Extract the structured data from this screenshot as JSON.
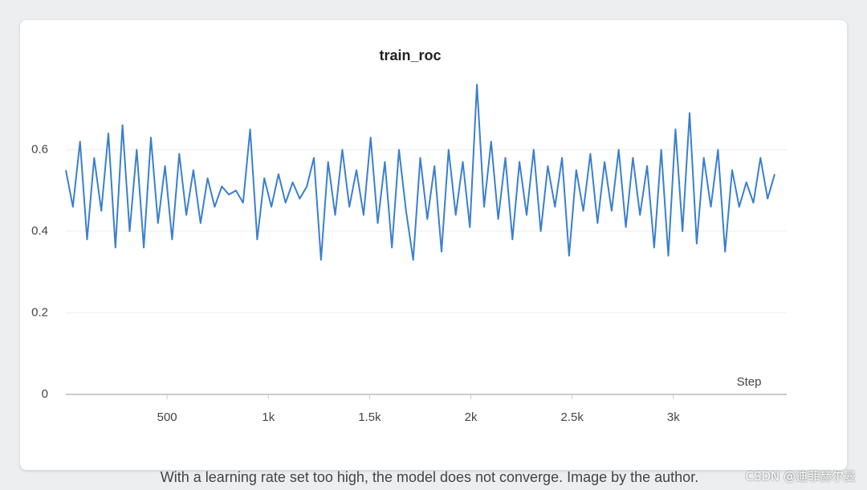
{
  "chart_data": {
    "type": "line",
    "title": "train_roc",
    "x_label": "Step",
    "x": [
      0,
      35,
      70,
      105,
      140,
      175,
      210,
      245,
      280,
      315,
      350,
      385,
      420,
      455,
      490,
      525,
      560,
      595,
      630,
      665,
      700,
      735,
      770,
      805,
      840,
      875,
      910,
      945,
      980,
      1015,
      1050,
      1085,
      1120,
      1155,
      1190,
      1225,
      1260,
      1295,
      1330,
      1365,
      1400,
      1435,
      1470,
      1505,
      1540,
      1575,
      1610,
      1645,
      1680,
      1715,
      1750,
      1785,
      1820,
      1855,
      1890,
      1925,
      1960,
      1995,
      2030,
      2065,
      2100,
      2135,
      2170,
      2205,
      2240,
      2275,
      2310,
      2345,
      2380,
      2415,
      2450,
      2485,
      2520,
      2555,
      2590,
      2625,
      2660,
      2695,
      2730,
      2765,
      2800,
      2835,
      2870,
      2905,
      2940,
      2975,
      3010,
      3045,
      3080,
      3115,
      3150,
      3185,
      3220,
      3255,
      3290,
      3325,
      3360,
      3395,
      3430,
      3465,
      3500
    ],
    "series": [
      {
        "name": "train_roc",
        "color": "#3a7fd0",
        "values": [
          0.55,
          0.46,
          0.62,
          0.38,
          0.58,
          0.45,
          0.64,
          0.36,
          0.66,
          0.4,
          0.6,
          0.36,
          0.63,
          0.42,
          0.56,
          0.38,
          0.59,
          0.44,
          0.55,
          0.42,
          0.53,
          0.46,
          0.51,
          0.49,
          0.5,
          0.47,
          0.65,
          0.38,
          0.53,
          0.46,
          0.54,
          0.47,
          0.52,
          0.48,
          0.51,
          0.58,
          0.33,
          0.57,
          0.44,
          0.6,
          0.46,
          0.55,
          0.44,
          0.63,
          0.42,
          0.57,
          0.36,
          0.6,
          0.45,
          0.33,
          0.58,
          0.43,
          0.56,
          0.35,
          0.6,
          0.44,
          0.57,
          0.41,
          0.76,
          0.46,
          0.62,
          0.43,
          0.58,
          0.38,
          0.57,
          0.44,
          0.6,
          0.4,
          0.56,
          0.46,
          0.58,
          0.34,
          0.55,
          0.45,
          0.59,
          0.42,
          0.57,
          0.45,
          0.6,
          0.41,
          0.58,
          0.44,
          0.56,
          0.36,
          0.6,
          0.34,
          0.65,
          0.4,
          0.69,
          0.37,
          0.58,
          0.46,
          0.6,
          0.35,
          0.55,
          0.46,
          0.52,
          0.47,
          0.58,
          0.48,
          0.54
        ]
      }
    ],
    "xlim": [
      0,
      3500
    ],
    "xticks": [
      500,
      {
        "value": 1000,
        "label": "1k"
      },
      {
        "value": 1500,
        "label": "1.5k"
      },
      {
        "value": 2000,
        "label": "2k"
      },
      {
        "value": 2500,
        "label": "2.5k"
      },
      {
        "value": 3000,
        "label": "3k"
      }
    ],
    "ylim": [
      0,
      0.78
    ],
    "yticks": [
      0,
      0.2,
      0.4,
      0.6
    ],
    "grid": true
  },
  "caption": "With a learning rate set too high, the model does not converge. Image by the author.",
  "watermark": "CSDN @迪菲赫尔曼"
}
